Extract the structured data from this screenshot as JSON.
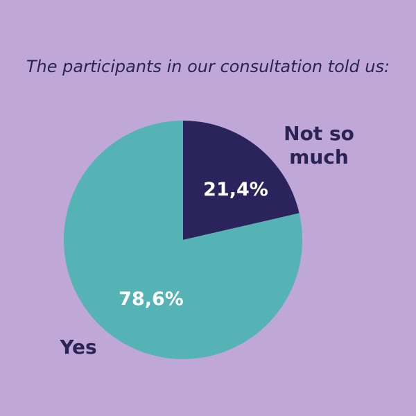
{
  "chart_data": {
    "type": "pie",
    "title": "The participants in our consultation told us:",
    "slices": [
      {
        "name": "Not so much",
        "label_lines": [
          "Not so",
          "much"
        ],
        "value": 21.4,
        "value_label": "21,4%",
        "color": "#2b245c"
      },
      {
        "name": "Yes",
        "label_lines": [
          "Yes"
        ],
        "value": 78.6,
        "value_label": "78,6%",
        "color": "#55b3b5"
      }
    ]
  }
}
